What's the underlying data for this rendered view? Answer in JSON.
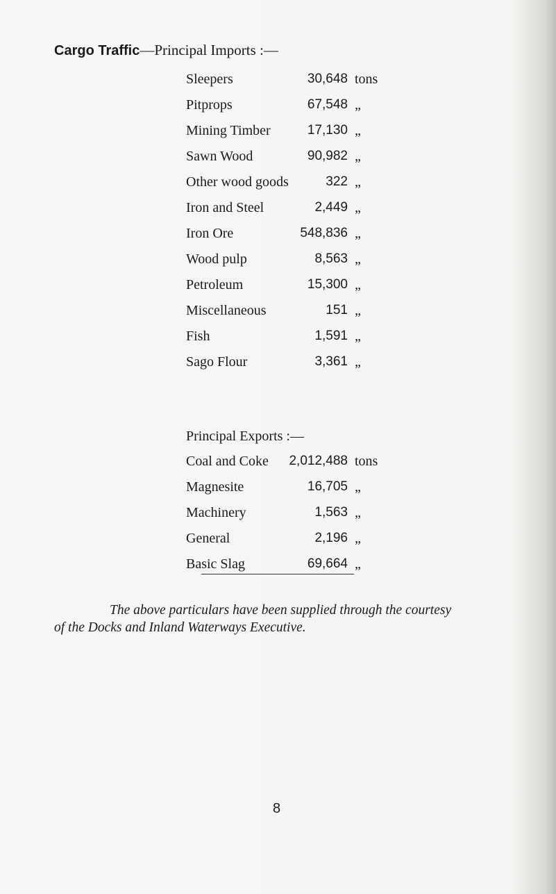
{
  "title_bold": "Cargo Traffic",
  "title_rest": "—Principal Imports :—",
  "imports": [
    {
      "name": "Sleepers",
      "value": "30,648",
      "unit": "tons"
    },
    {
      "name": "Pitprops",
      "value": "67,548",
      "unit": "„"
    },
    {
      "name": "Mining Timber",
      "value": "17,130",
      "unit": "„"
    },
    {
      "name": "Sawn Wood",
      "value": "90,982",
      "unit": "„"
    },
    {
      "name": "Other wood goods",
      "value": "322",
      "unit": "„"
    },
    {
      "name": "Iron and Steel",
      "value": "2,449",
      "unit": "„"
    },
    {
      "name": "Iron Ore",
      "value": "548,836",
      "unit": "„"
    },
    {
      "name": "Wood pulp",
      "value": "8,563",
      "unit": "„"
    },
    {
      "name": "Petroleum",
      "value": "15,300",
      "unit": "„"
    },
    {
      "name": "Miscellaneous",
      "value": "151",
      "unit": "„"
    },
    {
      "name": "Fish",
      "value": "1,591",
      "unit": "„"
    },
    {
      "name": "Sago Flour",
      "value": "3,361",
      "unit": "„"
    }
  ],
  "exports_heading": "Principal Exports :—",
  "exports": [
    {
      "name": "Coal and Coke",
      "value": "2,012,488",
      "unit": "tons"
    },
    {
      "name": "Magnesite",
      "value": "16,705",
      "unit": "„"
    },
    {
      "name": "Machinery",
      "value": "1,563",
      "unit": "„"
    },
    {
      "name": "General",
      "value": "2,196",
      "unit": "„"
    },
    {
      "name": "Basic Slag",
      "value": "69,664",
      "unit": "„"
    }
  ],
  "footnote_line1": "The above particulars have been supplied through the courtesy",
  "footnote_line2": "of the Docks and Inland Waterways Executive.",
  "page_number": "8"
}
